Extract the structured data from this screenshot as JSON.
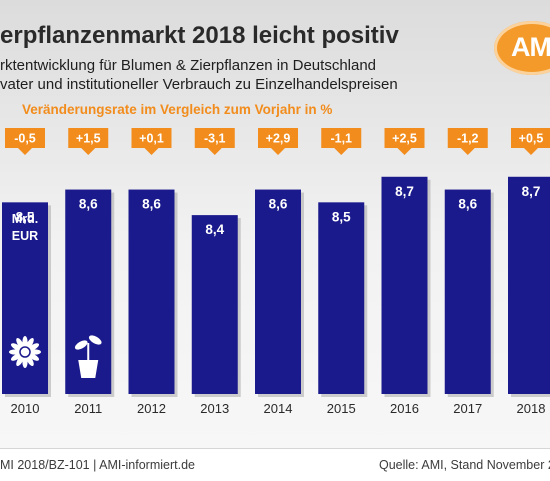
{
  "header": {
    "title": "erpflanzenmarkt 2018 leicht positiv",
    "subtitle_1": "rktentwicklung für Blumen & Zierpflanzen in Deutschland",
    "subtitle_2": "vater und institutioneller Verbrauch zu Einzelhandelspreisen",
    "change_caption": "Veränderungsrate im Vergleich zum Vorjahr in %"
  },
  "logo": {
    "text": "AMI",
    "color": "#f39a2b"
  },
  "colors": {
    "bar": "#1a1a8c",
    "change_badge": "#f28c1c",
    "text_on_bar": "#ffffff",
    "title": "#2a2a2a",
    "caption": "#f28c1c"
  },
  "chart_data": {
    "type": "bar",
    "categories": [
      "2010",
      "2011",
      "2012",
      "2013",
      "2014",
      "2015",
      "2016",
      "2017",
      "2018"
    ],
    "values": [
      8.5,
      8.6,
      8.6,
      8.4,
      8.6,
      8.5,
      8.7,
      8.6,
      8.7
    ],
    "value_labels": [
      "8,5",
      "8,6",
      "8,6",
      "8,4",
      "8,6",
      "8,5",
      "8,7",
      "8,6",
      "8,7"
    ],
    "changes": [
      "-0,5",
      "+1,5",
      "+0,1",
      "-3,1",
      "+2,9",
      "-1,1",
      "+2,5",
      "-1,2",
      "+0,5"
    ],
    "change_values": [
      -0.5,
      1.5,
      0.1,
      -3.1,
      2.9,
      -1.1,
      2.5,
      -1.2,
      0.5
    ],
    "unit_label_line1": "Mrd.",
    "unit_label_line2": "EUR",
    "bar_icons": [
      "flower-icon",
      "potted-plant-icon",
      "",
      "",
      "",
      "",
      "",
      "",
      ""
    ],
    "ylim": [
      7.0,
      8.8
    ],
    "grid": false,
    "legend": "none"
  },
  "footer": {
    "left": "MI 2018/BZ-101 | AMI-informiert.de",
    "right": "Quelle: AMI, Stand November 2"
  }
}
